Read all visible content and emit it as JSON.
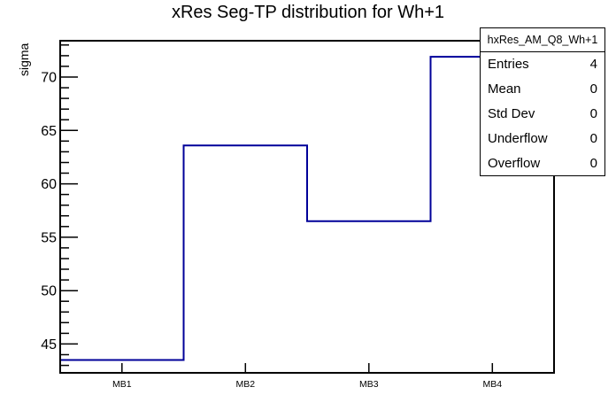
{
  "title": "xRes Seg-TP distribution for Wh+1",
  "colors": {
    "hist_line": "#000099",
    "axis": "#000000",
    "background": "#ffffff"
  },
  "stats_box": {
    "header": "hxRes_AM_Q8_Wh+1",
    "rows": [
      {
        "label": "Entries",
        "value": "4"
      },
      {
        "label": "Mean",
        "value": "0"
      },
      {
        "label": "Std Dev",
        "value": "0"
      },
      {
        "label": "Underflow",
        "value": "0"
      },
      {
        "label": "Overflow",
        "value": "0"
      }
    ]
  },
  "chart_data": {
    "type": "bar",
    "style": "step-outline-histogram",
    "categories": [
      "MB1",
      "MB2",
      "MB3",
      "MB4"
    ],
    "values": [
      43.5,
      63.6,
      56.5,
      71.9
    ],
    "title": "xRes Seg-TP distribution for Wh+1",
    "xlabel": "",
    "ylabel": "sigma",
    "ylim": [
      42.3,
      73.4
    ],
    "y_major_ticks": [
      45,
      50,
      55,
      60,
      65,
      70
    ],
    "y_minor_tick_step": 1,
    "grid": false,
    "legend": "none"
  }
}
